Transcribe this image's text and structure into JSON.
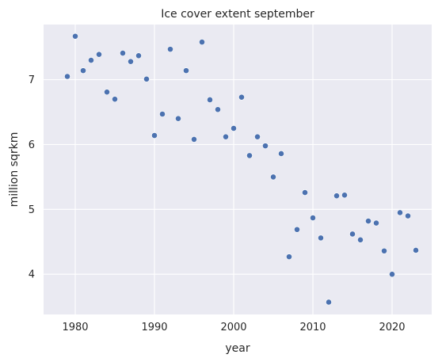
{
  "chart_data": {
    "type": "scatter",
    "title": "Ice cover extent september",
    "xlabel": "year",
    "ylabel": "million sqrkm",
    "xlim": [
      1976,
      2025
    ],
    "ylim": [
      3.38,
      7.85
    ],
    "xticks": [
      1980,
      1990,
      2000,
      2010,
      2020
    ],
    "yticks": [
      4,
      5,
      6,
      7
    ],
    "grid": true,
    "point_color": "#4c72b0",
    "background_color": "#eaeaf2",
    "x": [
      1979,
      1980,
      1981,
      1982,
      1983,
      1984,
      1985,
      1986,
      1987,
      1988,
      1989,
      1990,
      1991,
      1992,
      1993,
      1994,
      1995,
      1996,
      1997,
      1998,
      1999,
      2000,
      2001,
      2002,
      2003,
      2004,
      2005,
      2006,
      2007,
      2008,
      2009,
      2010,
      2011,
      2012,
      2013,
      2014,
      2015,
      2016,
      2017,
      2018,
      2019,
      2020,
      2021,
      2022,
      2023
    ],
    "y": [
      7.05,
      7.67,
      7.14,
      7.3,
      7.39,
      6.81,
      6.7,
      7.41,
      7.28,
      7.37,
      7.01,
      6.14,
      6.47,
      7.47,
      6.4,
      7.14,
      6.08,
      7.58,
      6.69,
      6.54,
      6.12,
      6.25,
      6.73,
      5.83,
      6.12,
      5.98,
      5.5,
      5.86,
      4.27,
      4.69,
      5.26,
      4.87,
      4.56,
      3.57,
      5.21,
      5.22,
      4.62,
      4.53,
      4.82,
      4.79,
      4.36,
      4.0,
      4.95,
      4.9,
      4.37
    ]
  }
}
